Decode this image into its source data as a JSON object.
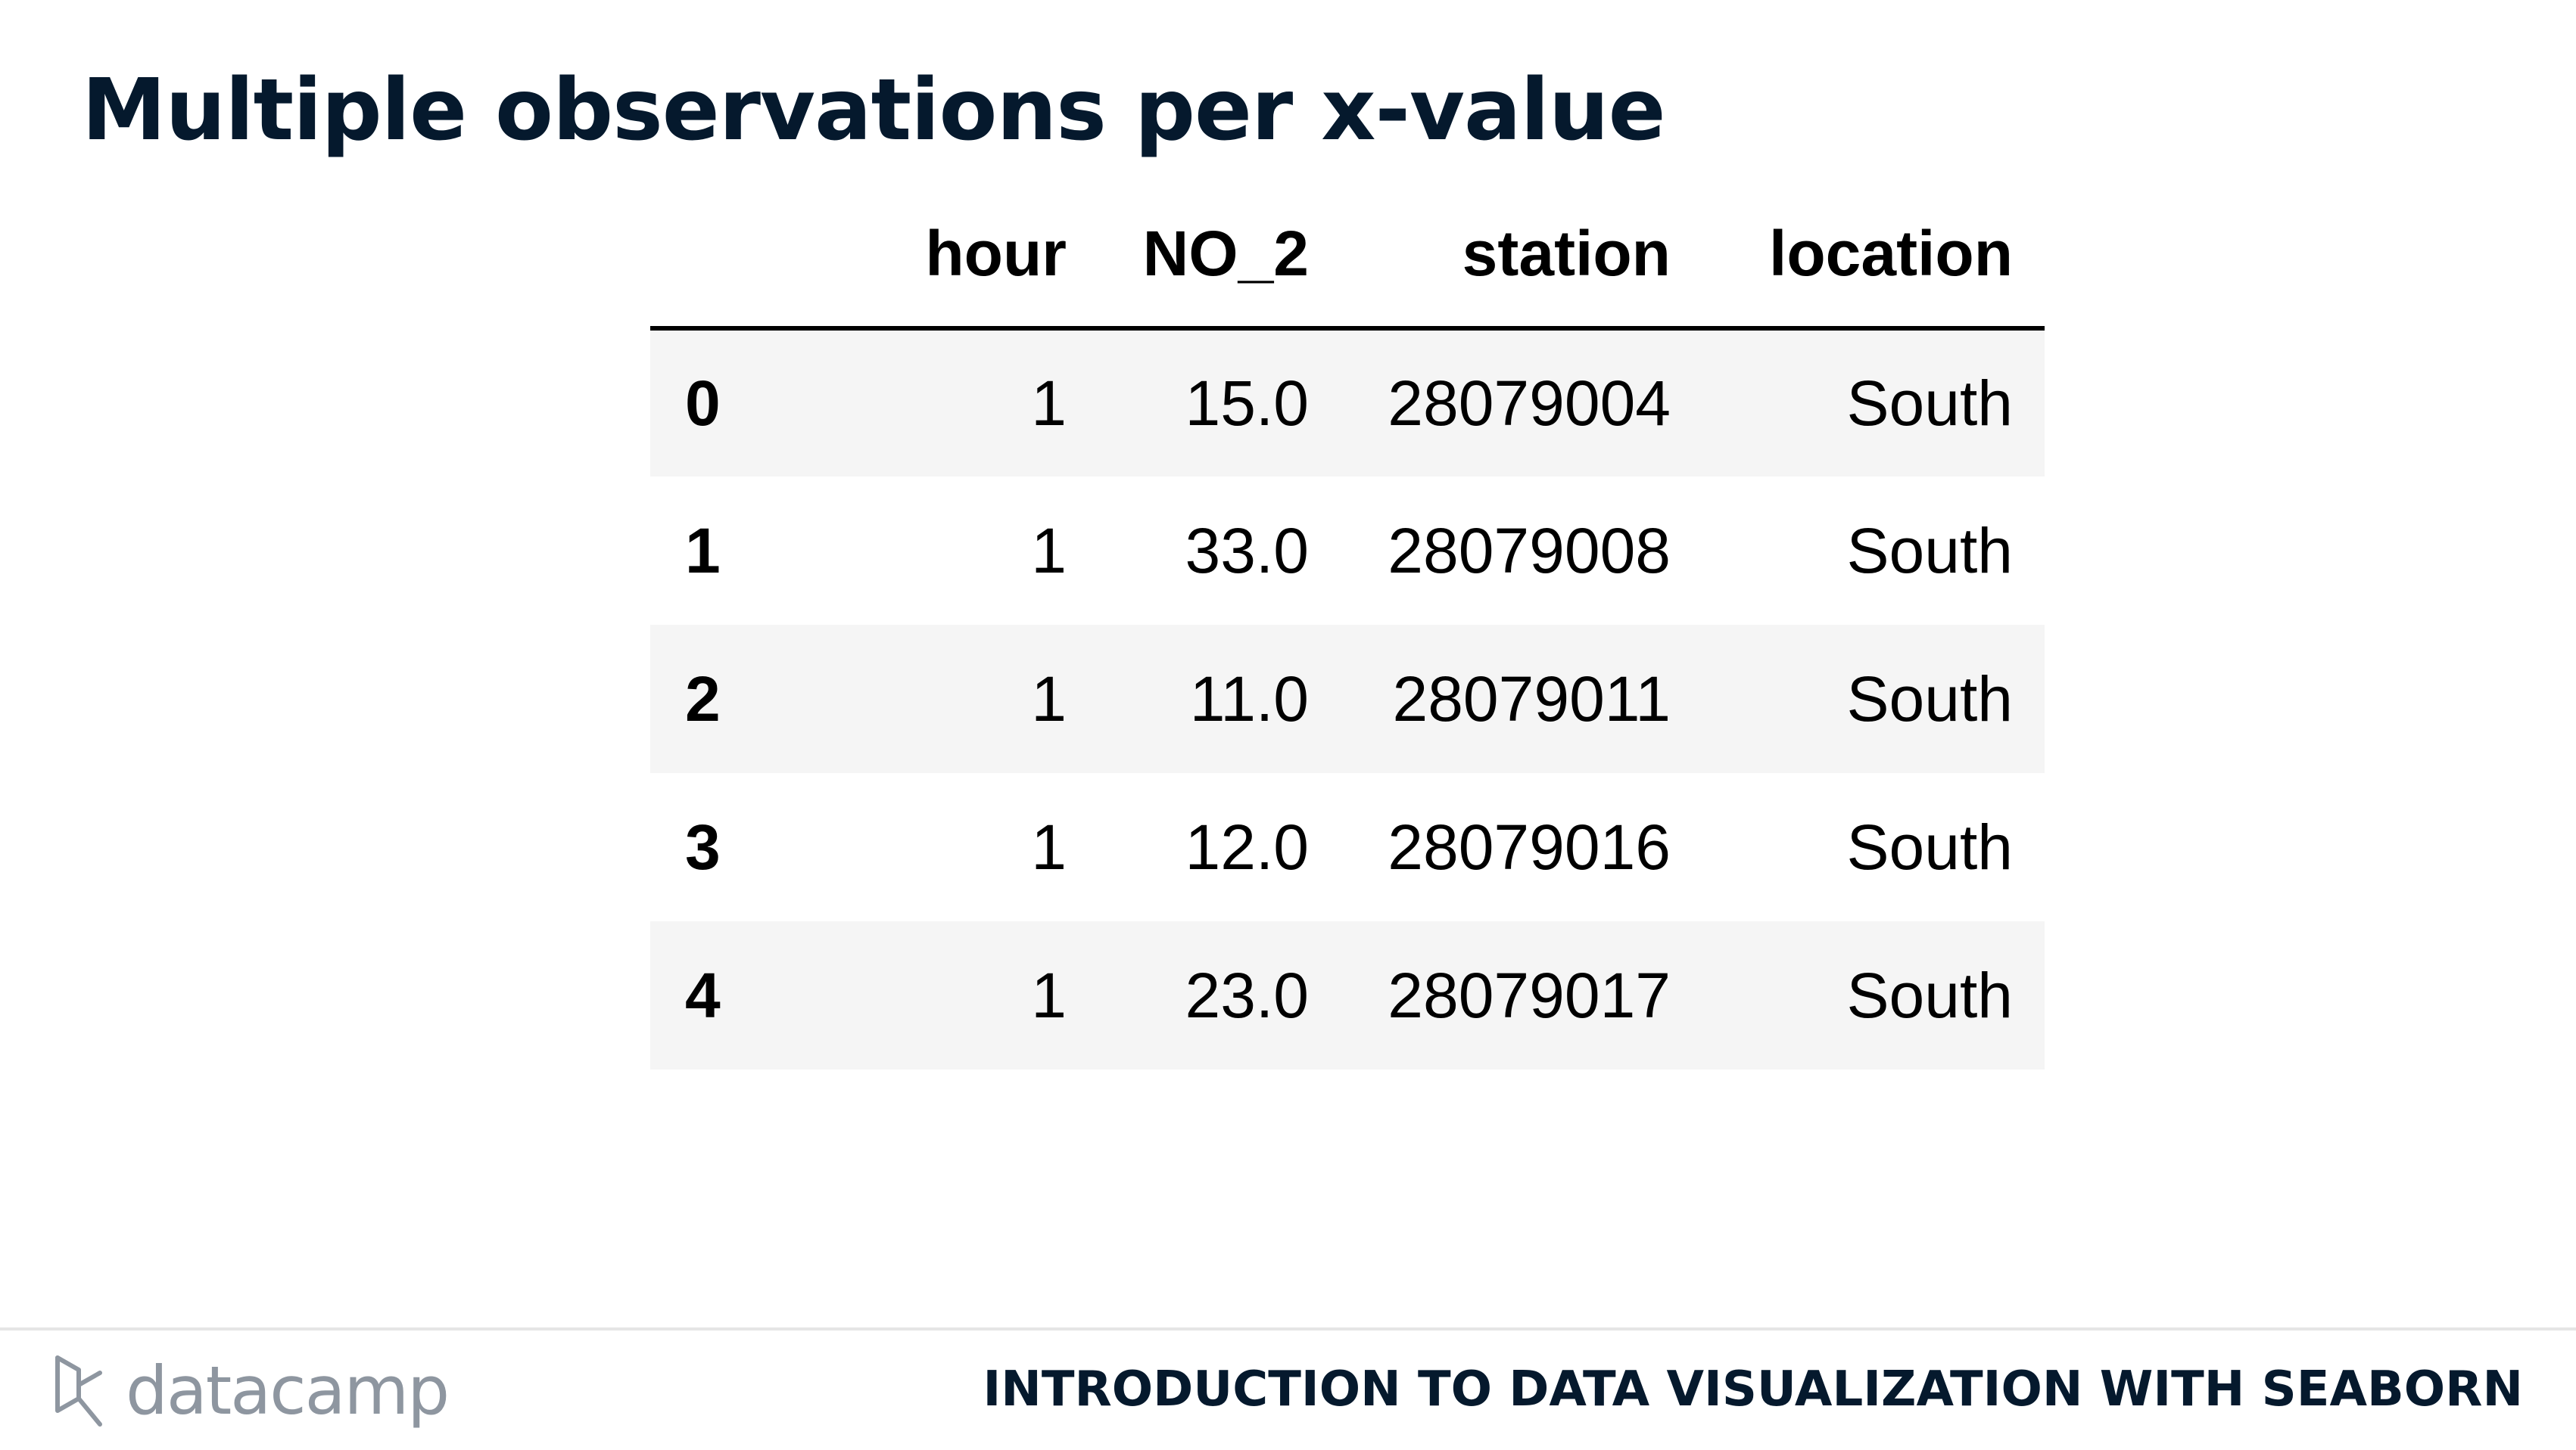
{
  "title": "Multiple observations per x-value",
  "table": {
    "columns": [
      "",
      "hour",
      "NO_2",
      "station",
      "location"
    ],
    "rows": [
      {
        "index": "0",
        "hour": "1",
        "no2": "15.0",
        "station": "28079004",
        "location": "South"
      },
      {
        "index": "1",
        "hour": "1",
        "no2": "33.0",
        "station": "28079008",
        "location": "South"
      },
      {
        "index": "2",
        "hour": "1",
        "no2": "11.0",
        "station": "28079011",
        "location": "South"
      },
      {
        "index": "3",
        "hour": "1",
        "no2": "12.0",
        "station": "28079016",
        "location": "South"
      },
      {
        "index": "4",
        "hour": "1",
        "no2": "23.0",
        "station": "28079017",
        "location": "South"
      }
    ]
  },
  "footer": {
    "logo_text": "datacamp",
    "course_title": "INTRODUCTION TO DATA VISUALIZATION WITH SEABORN"
  },
  "colors": {
    "title": "#05192d",
    "stripe": "#f5f5f5",
    "logo": "#8e96a0",
    "rule": "#e5e5e5"
  }
}
